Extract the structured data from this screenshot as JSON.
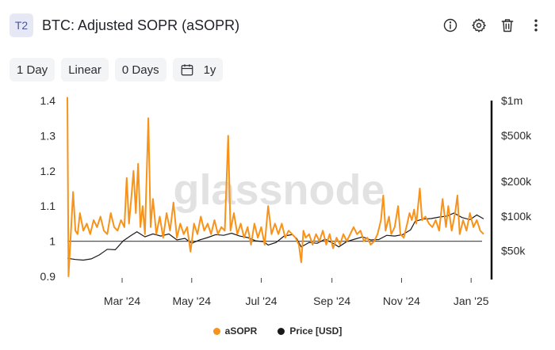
{
  "header": {
    "badge": "T2",
    "title": "BTC: Adjusted SOPR (aSOPR)",
    "icons": [
      "info-icon",
      "gear-icon",
      "trash-icon",
      "more-vertical-icon"
    ]
  },
  "toolbar": {
    "resolution": "1 Day",
    "scale": "Linear",
    "moving_average": "0 Days",
    "range": "1y",
    "range_icon": "calendar-icon"
  },
  "watermark": "glassnode",
  "colors": {
    "asopr": "#f7931a",
    "price": "#1a1a1a",
    "baseline": "#555555"
  },
  "chart_data": {
    "type": "line",
    "title": "BTC: Adjusted SOPR (aSOPR)",
    "x_range": [
      "2024-01-13",
      "2025-01-12"
    ],
    "x_ticks": [
      "Mar '24",
      "May '24",
      "Jul '24",
      "Sep '24",
      "Nov '24",
      "Jan '25"
    ],
    "y_left": {
      "ticks": [
        "1.4",
        "1.3",
        "1.2",
        "1.1",
        "1",
        "0.9"
      ],
      "range": [
        0.9,
        1.4
      ],
      "reference_line": 1.0
    },
    "y_right": {
      "scale": "log",
      "ticks": [
        "$1m",
        "$500k",
        "$200k",
        "$100k",
        "$50k"
      ],
      "range": [
        30000,
        1000000
      ]
    },
    "grid": false,
    "legend_position": "bottom",
    "series": [
      {
        "name": "aSOPR",
        "axis": "left",
        "points": [
          [
            "2024-01-13",
            1.41
          ],
          [
            "2024-01-14",
            0.9
          ],
          [
            "2024-01-16",
            1.02
          ],
          [
            "2024-01-18",
            1.14
          ],
          [
            "2024-01-20",
            1.03
          ],
          [
            "2024-01-22",
            1.02
          ],
          [
            "2024-01-24",
            1.08
          ],
          [
            "2024-01-27",
            1.03
          ],
          [
            "2024-01-30",
            1.05
          ],
          [
            "2024-02-02",
            1.02
          ],
          [
            "2024-02-05",
            1.06
          ],
          [
            "2024-02-08",
            1.04
          ],
          [
            "2024-02-11",
            1.07
          ],
          [
            "2024-02-14",
            1.03
          ],
          [
            "2024-02-17",
            1.02
          ],
          [
            "2024-02-20",
            1.08
          ],
          [
            "2024-02-23",
            1.04
          ],
          [
            "2024-02-26",
            1.03
          ],
          [
            "2024-02-29",
            1.06
          ],
          [
            "2024-03-03",
            1.04
          ],
          [
            "2024-03-05",
            1.18
          ],
          [
            "2024-03-07",
            1.05
          ],
          [
            "2024-03-09",
            1.12
          ],
          [
            "2024-03-11",
            1.2
          ],
          [
            "2024-03-13",
            1.08
          ],
          [
            "2024-03-15",
            1.22
          ],
          [
            "2024-03-17",
            1.04
          ],
          [
            "2024-03-19",
            1.1
          ],
          [
            "2024-03-21",
            1.02
          ],
          [
            "2024-03-24",
            1.35
          ],
          [
            "2024-03-26",
            1.04
          ],
          [
            "2024-03-28",
            1.12
          ],
          [
            "2024-03-31",
            1.02
          ],
          [
            "2024-04-03",
            1.07
          ],
          [
            "2024-04-06",
            1.01
          ],
          [
            "2024-04-09",
            1.08
          ],
          [
            "2024-04-12",
            1.03
          ],
          [
            "2024-04-15",
            1.11
          ],
          [
            "2024-04-18",
            1.01
          ],
          [
            "2024-04-21",
            1.05
          ],
          [
            "2024-04-24",
            1.02
          ],
          [
            "2024-04-27",
            1.04
          ],
          [
            "2024-04-30",
            0.97
          ],
          [
            "2024-05-03",
            1.05
          ],
          [
            "2024-05-06",
            1.02
          ],
          [
            "2024-05-09",
            1.07
          ],
          [
            "2024-05-12",
            1.03
          ],
          [
            "2024-05-15",
            1.05
          ],
          [
            "2024-05-18",
            1.02
          ],
          [
            "2024-05-21",
            1.06
          ],
          [
            "2024-05-24",
            1.02
          ],
          [
            "2024-05-27",
            1.04
          ],
          [
            "2024-05-30",
            1.03
          ],
          [
            "2024-06-02",
            1.3
          ],
          [
            "2024-06-04",
            1.03
          ],
          [
            "2024-06-07",
            1.08
          ],
          [
            "2024-06-10",
            1.02
          ],
          [
            "2024-06-13",
            1.05
          ],
          [
            "2024-06-16",
            1.01
          ],
          [
            "2024-06-19",
            1.04
          ],
          [
            "2024-06-22",
            0.99
          ],
          [
            "2024-06-25",
            1.05
          ],
          [
            "2024-06-28",
            1.01
          ],
          [
            "2024-07-01",
            1.04
          ],
          [
            "2024-07-04",
            0.99
          ],
          [
            "2024-07-07",
            1.1
          ],
          [
            "2024-07-10",
            1.02
          ],
          [
            "2024-07-13",
            1.05
          ],
          [
            "2024-07-16",
            1.02
          ],
          [
            "2024-07-19",
            1.05
          ],
          [
            "2024-07-22",
            1.01
          ],
          [
            "2024-07-25",
            1.03
          ],
          [
            "2024-07-28",
            1.02
          ],
          [
            "2024-07-31",
            1.01
          ],
          [
            "2024-08-03",
            0.99
          ],
          [
            "2024-08-05",
            0.94
          ],
          [
            "2024-08-07",
            1.03
          ],
          [
            "2024-08-09",
            1.01
          ],
          [
            "2024-08-12",
            1.02
          ],
          [
            "2024-08-15",
            0.99
          ],
          [
            "2024-08-18",
            1.02
          ],
          [
            "2024-08-21",
            1.0
          ],
          [
            "2024-08-24",
            1.03
          ],
          [
            "2024-08-27",
            0.99
          ],
          [
            "2024-08-30",
            1.02
          ],
          [
            "2024-09-02",
            0.98
          ],
          [
            "2024-09-05",
            1.01
          ],
          [
            "2024-09-08",
            0.99
          ],
          [
            "2024-09-11",
            1.02
          ],
          [
            "2024-09-14",
            1.0
          ],
          [
            "2024-09-17",
            1.02
          ],
          [
            "2024-09-20",
            1.04
          ],
          [
            "2024-09-23",
            1.02
          ],
          [
            "2024-09-26",
            1.03
          ],
          [
            "2024-09-29",
            1.0
          ],
          [
            "2024-10-02",
            1.01
          ],
          [
            "2024-10-05",
            0.99
          ],
          [
            "2024-10-08",
            1.0
          ],
          [
            "2024-10-11",
            1.02
          ],
          [
            "2024-10-14",
            1.06
          ],
          [
            "2024-10-16",
            1.13
          ],
          [
            "2024-10-18",
            1.03
          ],
          [
            "2024-10-21",
            1.07
          ],
          [
            "2024-10-23",
            1.02
          ],
          [
            "2024-10-26",
            1.04
          ],
          [
            "2024-10-29",
            1.1
          ],
          [
            "2024-10-31",
            1.02
          ],
          [
            "2024-11-03",
            1.01
          ],
          [
            "2024-11-06",
            1.05
          ],
          [
            "2024-11-08",
            1.08
          ],
          [
            "2024-11-10",
            1.06
          ],
          [
            "2024-11-12",
            1.09
          ],
          [
            "2024-11-14",
            1.05
          ],
          [
            "2024-11-17",
            1.15
          ],
          [
            "2024-11-19",
            1.06
          ],
          [
            "2024-11-22",
            1.07
          ],
          [
            "2024-11-25",
            1.05
          ],
          [
            "2024-11-28",
            1.04
          ],
          [
            "2024-12-01",
            1.06
          ],
          [
            "2024-12-04",
            1.03
          ],
          [
            "2024-12-07",
            1.12
          ],
          [
            "2024-12-10",
            1.04
          ],
          [
            "2024-12-12",
            1.1
          ],
          [
            "2024-12-15",
            1.03
          ],
          [
            "2024-12-18",
            1.08
          ],
          [
            "2024-12-20",
            1.13
          ],
          [
            "2024-12-22",
            1.02
          ],
          [
            "2024-12-25",
            1.06
          ],
          [
            "2024-12-28",
            1.03
          ],
          [
            "2024-12-31",
            1.08
          ],
          [
            "2025-01-03",
            1.04
          ],
          [
            "2025-01-06",
            1.06
          ],
          [
            "2025-01-09",
            1.03
          ],
          [
            "2025-01-12",
            1.02
          ]
        ]
      },
      {
        "name": "Price [USD]",
        "axis": "right",
        "points": [
          [
            "2024-01-13",
            43000
          ],
          [
            "2024-01-20",
            42000
          ],
          [
            "2024-01-27",
            41500
          ],
          [
            "2024-02-03",
            42500
          ],
          [
            "2024-02-10",
            46000
          ],
          [
            "2024-02-17",
            51500
          ],
          [
            "2024-02-24",
            51000
          ],
          [
            "2024-03-02",
            61000
          ],
          [
            "2024-03-09",
            68000
          ],
          [
            "2024-03-14",
            73000
          ],
          [
            "2024-03-21",
            66000
          ],
          [
            "2024-03-28",
            70000
          ],
          [
            "2024-04-04",
            67000
          ],
          [
            "2024-04-11",
            70000
          ],
          [
            "2024-04-18",
            62000
          ],
          [
            "2024-04-25",
            64000
          ],
          [
            "2024-05-01",
            58000
          ],
          [
            "2024-05-08",
            62000
          ],
          [
            "2024-05-15",
            65000
          ],
          [
            "2024-05-22",
            69000
          ],
          [
            "2024-05-29",
            68000
          ],
          [
            "2024-06-05",
            71000
          ],
          [
            "2024-06-12",
            67000
          ],
          [
            "2024-06-19",
            65000
          ],
          [
            "2024-06-26",
            61000
          ],
          [
            "2024-07-03",
            60000
          ],
          [
            "2024-07-07",
            56000
          ],
          [
            "2024-07-14",
            59000
          ],
          [
            "2024-07-21",
            67000
          ],
          [
            "2024-07-28",
            69000
          ],
          [
            "2024-08-01",
            64000
          ],
          [
            "2024-08-05",
            54000
          ],
          [
            "2024-08-12",
            59000
          ],
          [
            "2024-08-19",
            58000
          ],
          [
            "2024-08-26",
            63000
          ],
          [
            "2024-09-02",
            58000
          ],
          [
            "2024-09-07",
            54000
          ],
          [
            "2024-09-14",
            60000
          ],
          [
            "2024-09-21",
            63000
          ],
          [
            "2024-09-28",
            66000
          ],
          [
            "2024-10-05",
            62000
          ],
          [
            "2024-10-12",
            62500
          ],
          [
            "2024-10-19",
            68000
          ],
          [
            "2024-10-26",
            67000
          ],
          [
            "2024-11-02",
            69000
          ],
          [
            "2024-11-09",
            76000
          ],
          [
            "2024-11-13",
            90000
          ],
          [
            "2024-11-20",
            94000
          ],
          [
            "2024-11-27",
            95000
          ],
          [
            "2024-12-04",
            98000
          ],
          [
            "2024-12-11",
            100000
          ],
          [
            "2024-12-17",
            106000
          ],
          [
            "2024-12-24",
            97000
          ],
          [
            "2024-12-31",
            93000
          ],
          [
            "2025-01-06",
            102000
          ],
          [
            "2025-01-12",
            94500
          ]
        ]
      }
    ]
  },
  "legend": {
    "asopr": "aSOPR",
    "price": "Price [USD]"
  }
}
